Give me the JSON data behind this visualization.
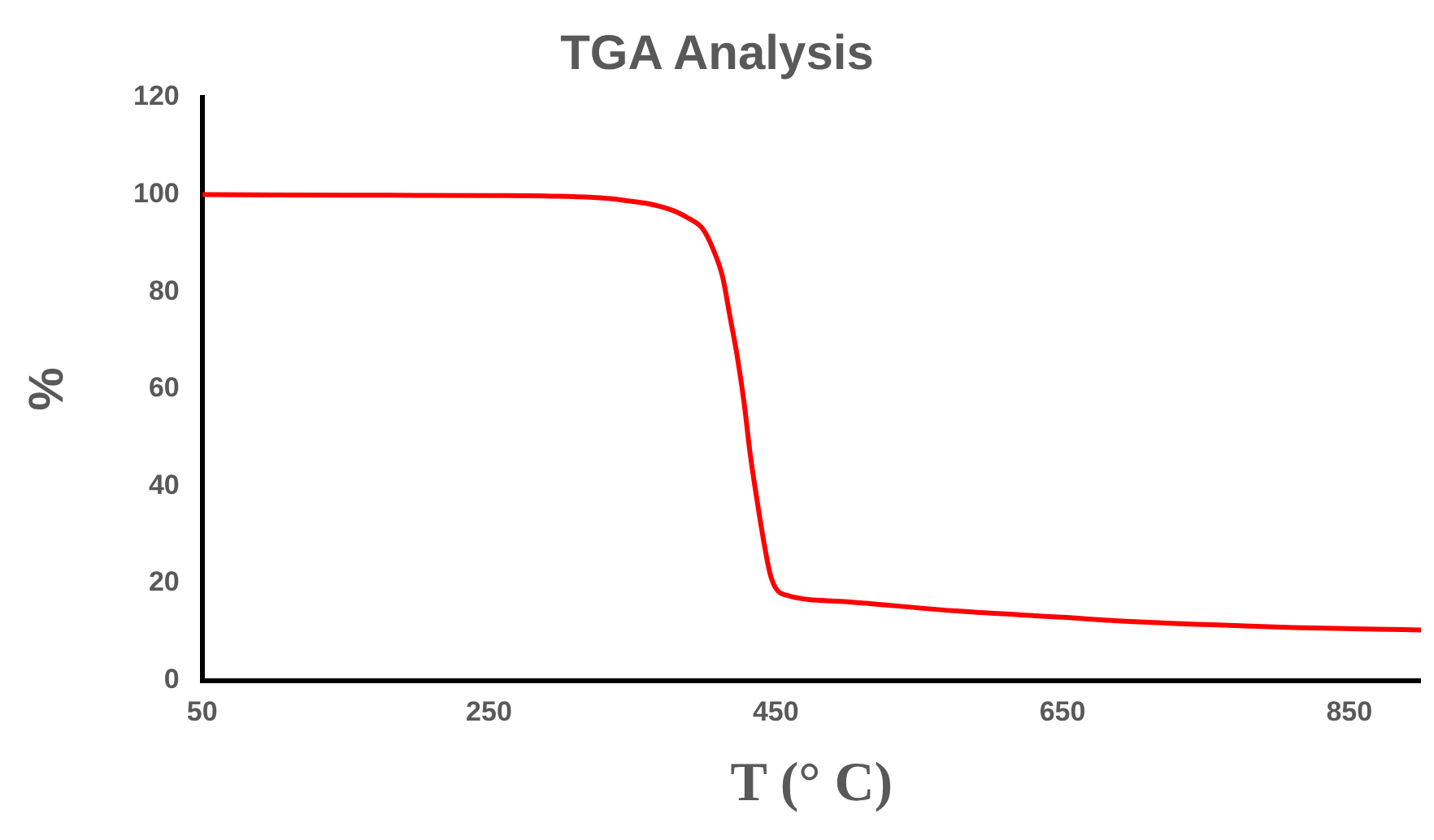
{
  "chart_data": {
    "type": "line",
    "title": "TGA Analysis",
    "xlabel": "T (° C)",
    "ylabel": "%",
    "xlim": [
      50,
      900
    ],
    "xticks": [
      50,
      250,
      450,
      650,
      850
    ],
    "ylim": [
      0,
      120
    ],
    "yticks": [
      0,
      20,
      40,
      60,
      80,
      100,
      120
    ],
    "grid": false,
    "legend": false,
    "marker": "none",
    "line_style": "solid",
    "series": [
      {
        "color": "#ff0000",
        "x": [
          50,
          150,
          250,
          293,
          340,
          376,
          390,
          399,
          406,
          413,
          418,
          423,
          428,
          432,
          437,
          442,
          446,
          450,
          458,
          500,
          576,
          650,
          694,
          750,
          811,
          860,
          900
        ],
        "values": [
          100,
          99.9,
          99.8,
          99.7,
          99,
          97,
          95,
          93,
          89,
          83,
          75,
          67,
          57,
          47,
          37,
          28,
          22,
          19,
          17.5,
          16.2,
          14.3,
          13,
          12.2,
          11.5,
          10.9,
          10.6,
          10.4
        ]
      }
    ]
  }
}
